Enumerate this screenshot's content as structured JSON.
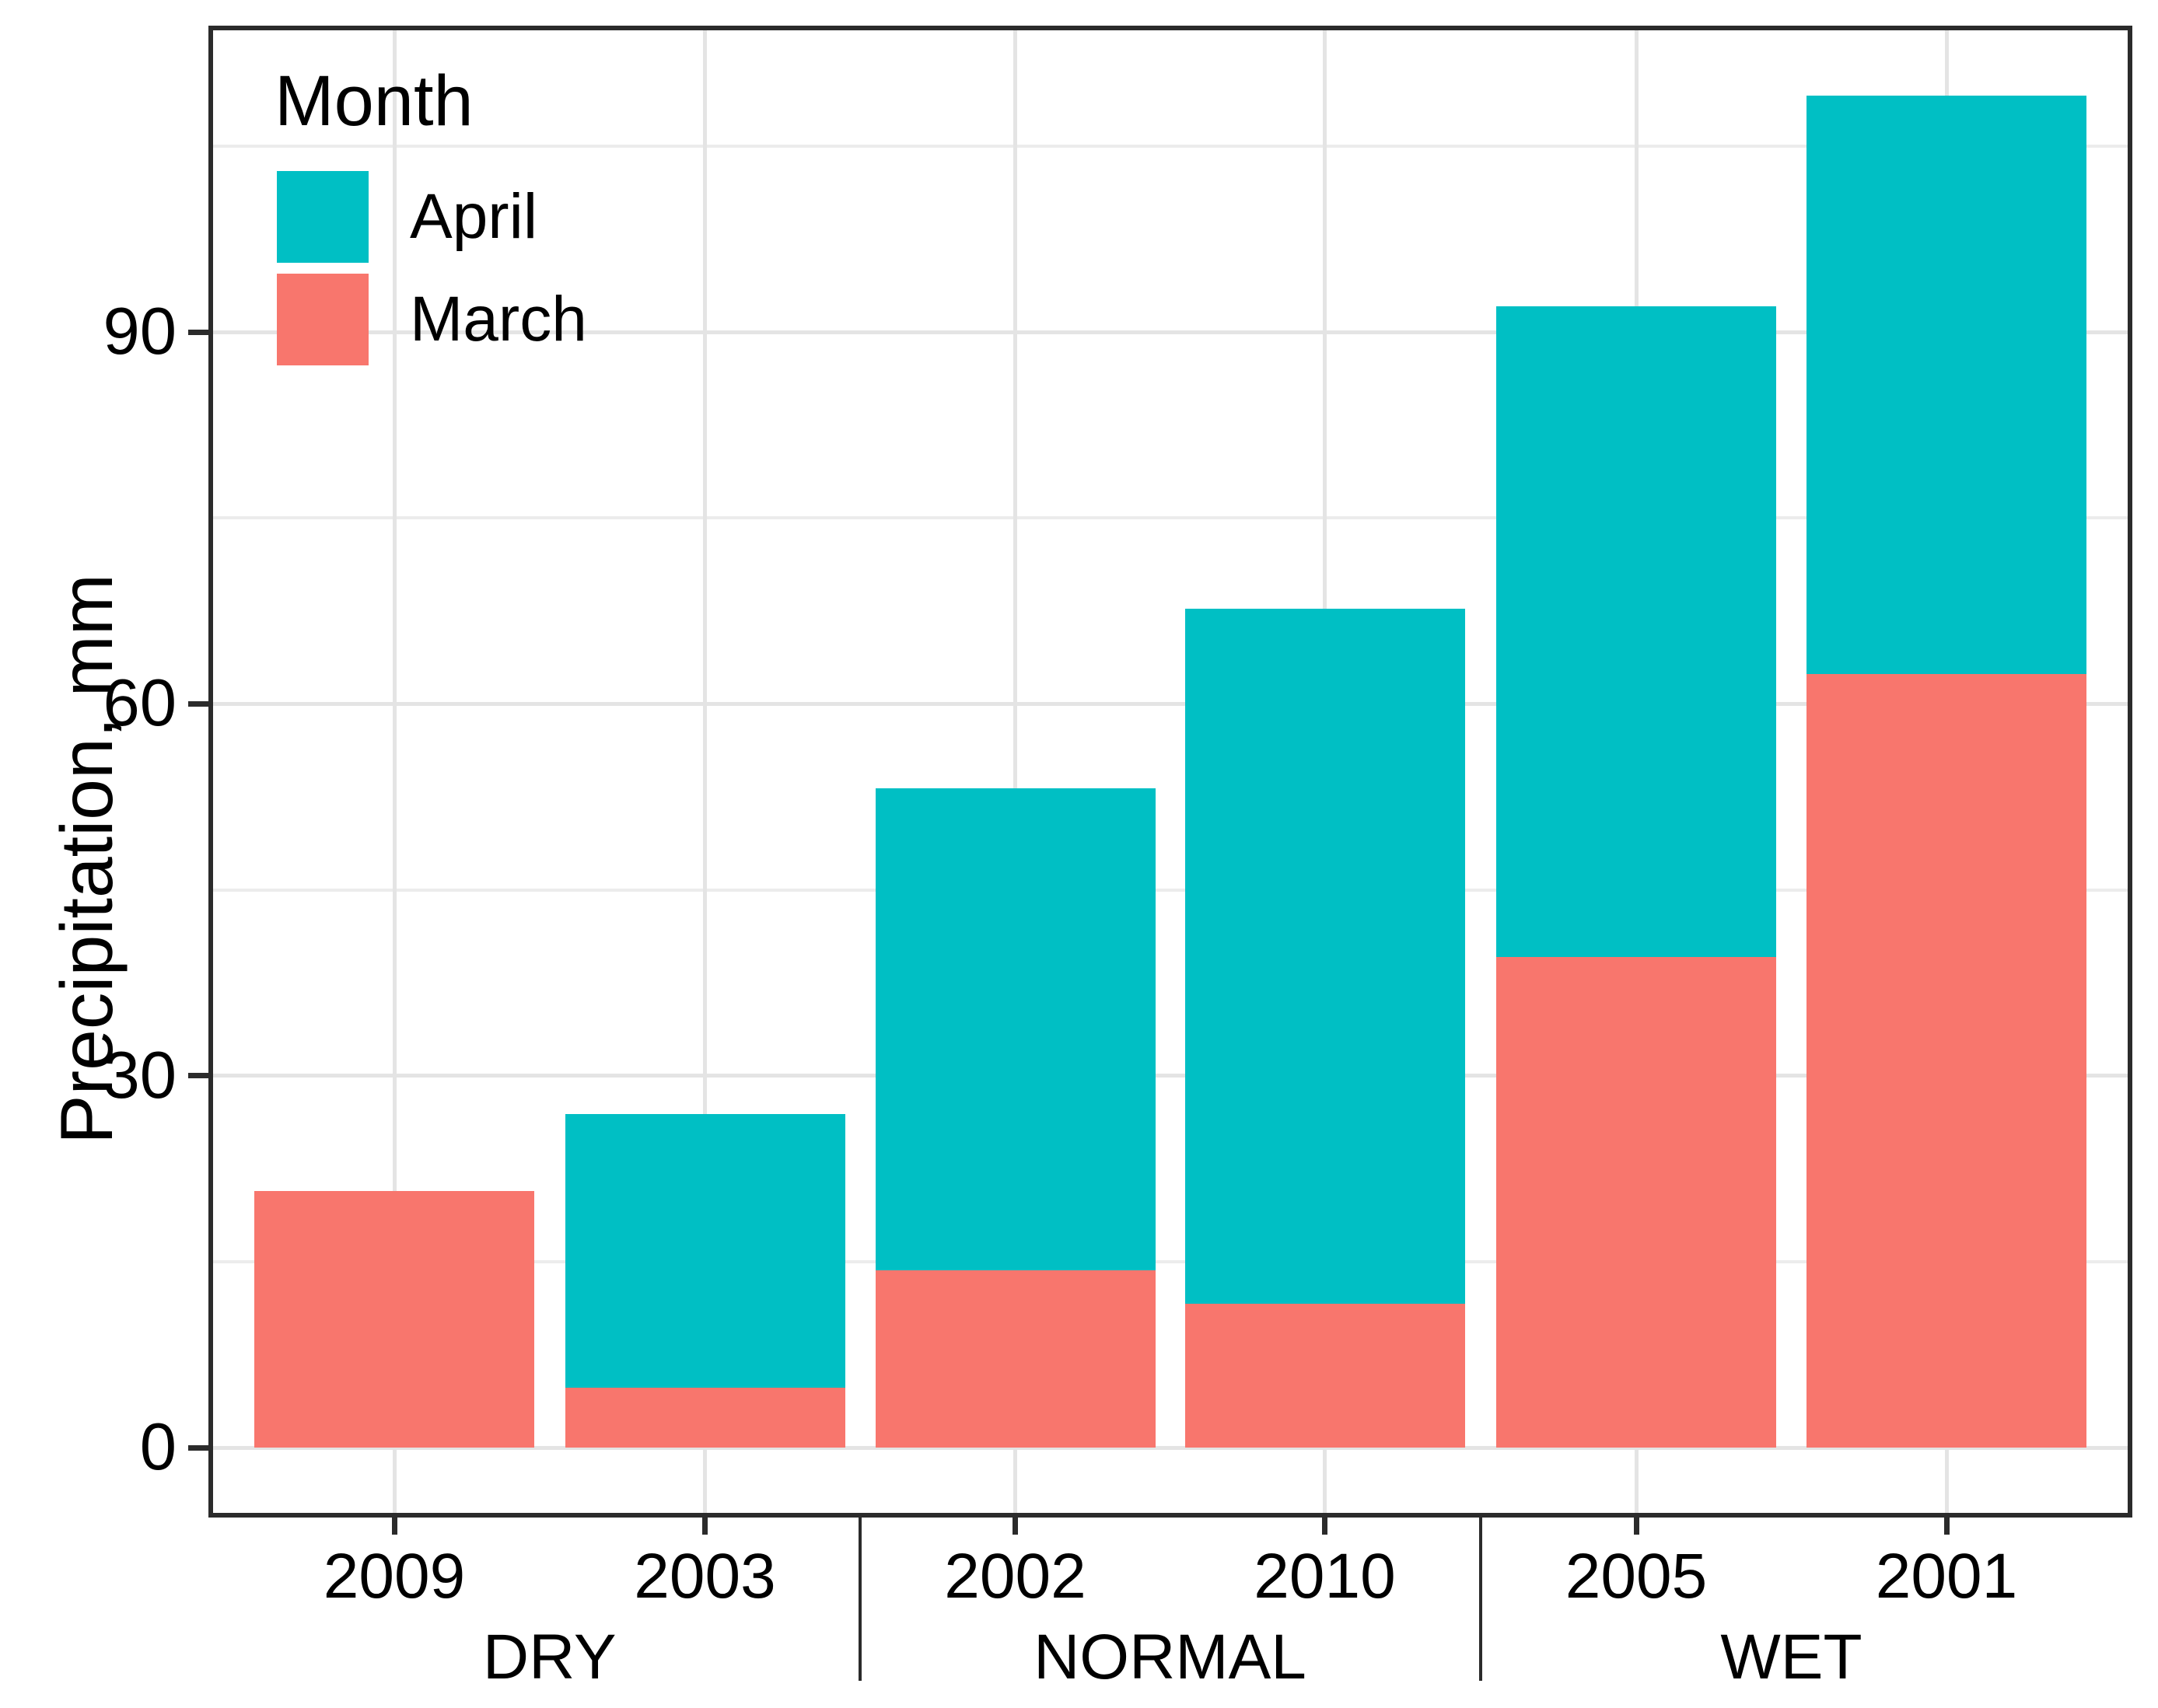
{
  "chart_data": {
    "type": "bar",
    "stacked": true,
    "title": "",
    "xlabel": "",
    "ylabel": "Precipitation, mm",
    "categories": [
      "2009",
      "2003",
      "2002",
      "2010",
      "2005",
      "2001"
    ],
    "groups": [
      {
        "label": "DRY",
        "category_indexes": [
          0,
          1
        ]
      },
      {
        "label": "NORMAL",
        "category_indexes": [
          2,
          3
        ]
      },
      {
        "label": "WET",
        "category_indexes": [
          4,
          5
        ]
      }
    ],
    "series": [
      {
        "name": "March",
        "color": "#F8766D",
        "values": [
          20.7,
          4.8,
          14.3,
          11.6,
          39.6,
          62.4
        ]
      },
      {
        "name": "April",
        "color": "#00BFC4",
        "values": [
          0,
          22.1,
          38.9,
          56.1,
          52.5,
          46.7
        ]
      }
    ],
    "stack_order_bottom_to_top": [
      "March",
      "April"
    ],
    "totals": [
      20.7,
      26.9,
      53.2,
      67.7,
      92.1,
      109.1
    ],
    "y_ticks": [
      0,
      30,
      60,
      90
    ],
    "y_minor_ticks": [
      15,
      45,
      75,
      105
    ],
    "ylim": [
      0,
      114
    ],
    "grid": true,
    "legend": {
      "title": "Month",
      "position": "top-left-inside",
      "entries": [
        "April",
        "March"
      ]
    }
  },
  "colors": {
    "march": "#F8766D",
    "april": "#00BFC4",
    "grid_major": "#e4e4e4",
    "grid_minor": "#ececec",
    "panel_border": "#2b2b2b",
    "text": "#000000",
    "background": "#ffffff"
  }
}
